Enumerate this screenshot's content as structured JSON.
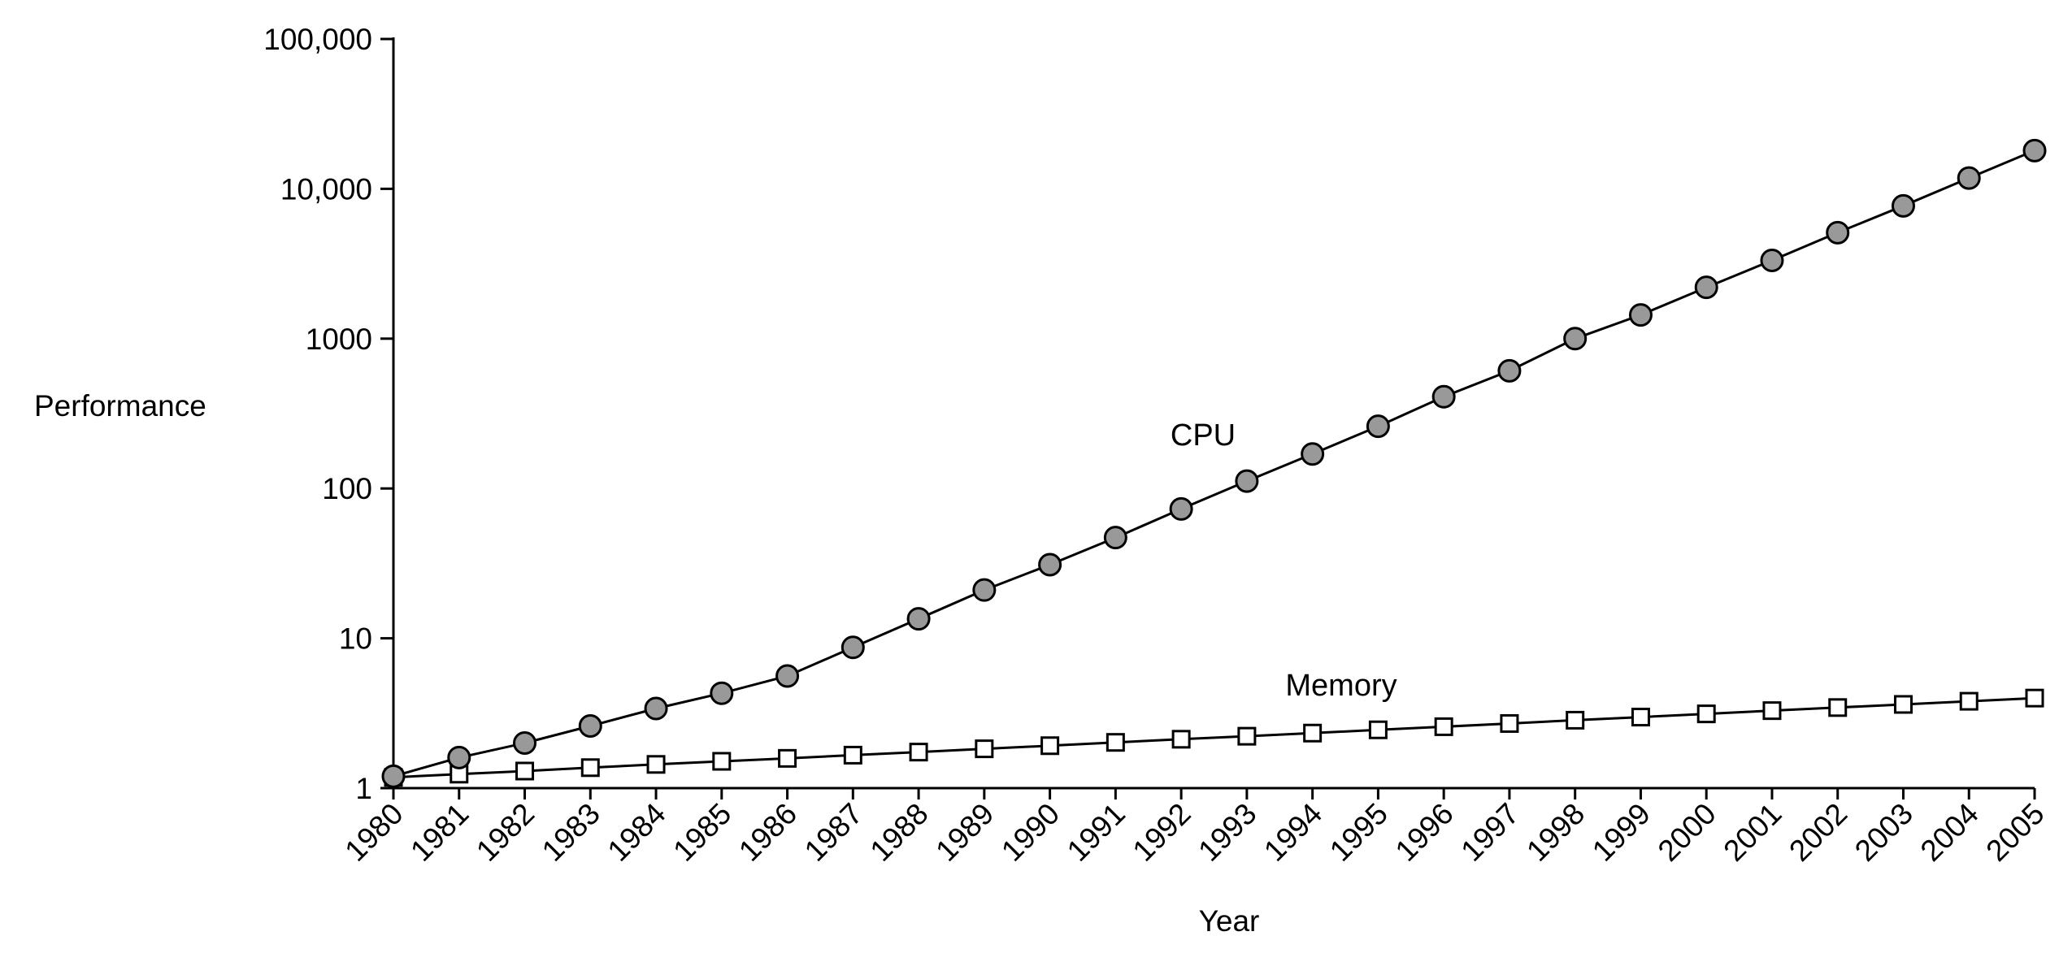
{
  "chart_data": {
    "type": "line",
    "ylabel": "Performance",
    "xlabel": "Year",
    "y_scale": "log",
    "ylim": [
      1,
      100000
    ],
    "yticks": [
      {
        "value": 1,
        "label": "1"
      },
      {
        "value": 10,
        "label": "10"
      },
      {
        "value": 100,
        "label": "100"
      },
      {
        "value": 1000,
        "label": "1000"
      },
      {
        "value": 10000,
        "label": "10,000"
      },
      {
        "value": 100000,
        "label": "100,000"
      }
    ],
    "categories": [
      "1980",
      "1981",
      "1982",
      "1983",
      "1984",
      "1985",
      "1986",
      "1987",
      "1988",
      "1989",
      "1990",
      "1991",
      "1992",
      "1993",
      "1994",
      "1995",
      "1996",
      "1997",
      "1998",
      "1999",
      "2000",
      "2001",
      "2002",
      "2003",
      "2004",
      "2005"
    ],
    "series": [
      {
        "name": "CPU",
        "marker": "circle",
        "marker_color": "#999999",
        "values": [
          1.2,
          1.6,
          2.0,
          2.6,
          3.4,
          4.3,
          5.6,
          8.7,
          13.5,
          21,
          31,
          47,
          73,
          112,
          170,
          260,
          410,
          610,
          1000,
          1440,
          2200,
          3330,
          5100,
          7700,
          11800,
          18000
        ]
      },
      {
        "name": "Memory",
        "marker": "square",
        "marker_color": "#ffffff",
        "values": [
          1.18,
          1.24,
          1.3,
          1.37,
          1.44,
          1.51,
          1.58,
          1.66,
          1.74,
          1.83,
          1.92,
          2.02,
          2.12,
          2.22,
          2.33,
          2.45,
          2.57,
          2.7,
          2.84,
          2.98,
          3.13,
          3.29,
          3.45,
          3.62,
          3.8,
          3.99
        ]
      }
    ]
  }
}
